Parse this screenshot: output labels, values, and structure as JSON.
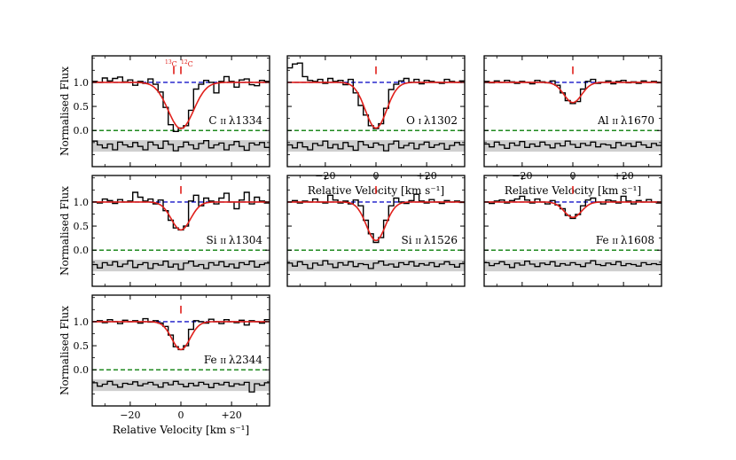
{
  "colors": {
    "data": "#000000",
    "model": "#e0201b",
    "continuum": "#1515c8",
    "zero": "#1f8a1f",
    "residual_band": "#cfcfcf",
    "marker": "#e0201b"
  },
  "labels": {
    "ylabel": "Normalised Flux",
    "xlabel": "Relative Velocity [km s⁻¹]"
  },
  "chart_data": {
    "type": "line",
    "xlim": [
      -35,
      35
    ],
    "ylim": [
      -0.75,
      1.55
    ],
    "yticks": [
      0.0,
      0.5,
      1.0
    ],
    "ytick_labels": [
      "0.0",
      "0.5",
      "1.0"
    ],
    "xticks": [
      -20,
      0,
      20
    ],
    "xtick_labels": [
      "−20",
      "0",
      "+20"
    ],
    "continuum_level": 1.0,
    "zero_level": 0.0,
    "residual_offset": -0.32,
    "residual_band_halfwidth": 0.12,
    "panels": [
      {
        "label": "C ii λ1334",
        "ion": "C",
        "state": "ii",
        "wave": "λ1334",
        "component_markers": [
          -2.8,
          0.0
        ],
        "marker_labels": [
          "13C",
          "12C"
        ],
        "model": {
          "center": 0.0,
          "depth": 0.96,
          "width": 5.0
        },
        "x": [
          -34,
          -32,
          -30,
          -28,
          -26,
          -24,
          -22,
          -20,
          -18,
          -16,
          -14,
          -12,
          -10,
          -8,
          -6,
          -4,
          -2,
          0,
          2,
          4,
          6,
          8,
          10,
          12,
          14,
          16,
          18,
          20,
          22,
          24,
          26,
          28,
          30,
          32,
          34
        ],
        "y": [
          1.02,
          1.0,
          1.09,
          1.03,
          1.08,
          1.11,
          1.01,
          1.05,
          0.94,
          1.02,
          0.98,
          1.07,
          0.96,
          0.8,
          0.48,
          0.12,
          -0.02,
          0.05,
          0.1,
          0.42,
          0.86,
          0.96,
          1.04,
          1.0,
          0.78,
          1.02,
          1.12,
          1.02,
          0.9,
          1.05,
          1.07,
          0.95,
          0.93,
          1.04,
          1.02
        ],
        "resid": [
          -0.22,
          -0.3,
          -0.36,
          -0.28,
          -0.4,
          -0.24,
          -0.3,
          -0.34,
          -0.25,
          -0.33,
          -0.4,
          -0.24,
          -0.3,
          -0.37,
          -0.22,
          -0.29,
          -0.42,
          -0.34,
          -0.24,
          -0.3,
          -0.38,
          -0.27,
          -0.21,
          -0.36,
          -0.3,
          -0.26,
          -0.4,
          -0.3,
          -0.23,
          -0.33,
          -0.41,
          -0.26,
          -0.3,
          -0.25,
          -0.35
        ]
      },
      {
        "label": "O i λ1302",
        "ion": "O",
        "state": "i",
        "wave": "λ1302",
        "component_markers": [
          0.0
        ],
        "marker_labels": [],
        "model": {
          "center": 0.0,
          "depth": 0.95,
          "width": 4.2
        },
        "x": [
          -34,
          -32,
          -30,
          -28,
          -26,
          -24,
          -22,
          -20,
          -18,
          -16,
          -14,
          -12,
          -10,
          -8,
          -6,
          -4,
          -2,
          0,
          2,
          4,
          6,
          8,
          10,
          12,
          14,
          16,
          18,
          20,
          22,
          24,
          26,
          28,
          30,
          32,
          34
        ],
        "y": [
          1.3,
          1.38,
          1.4,
          1.12,
          1.04,
          1.02,
          1.06,
          0.98,
          1.08,
          1.02,
          1.04,
          0.95,
          1.06,
          0.78,
          0.52,
          0.32,
          0.1,
          0.04,
          0.14,
          0.46,
          0.85,
          0.96,
          1.03,
          1.08,
          1.0,
          1.06,
          0.97,
          1.04,
          1.02,
          1.0,
          0.98,
          1.06,
          1.02,
          1.0,
          1.03
        ],
        "resid": [
          -0.3,
          -0.36,
          -0.25,
          -0.34,
          -0.4,
          -0.27,
          -0.31,
          -0.22,
          -0.36,
          -0.29,
          -0.38,
          -0.25,
          -0.33,
          -0.41,
          -0.23,
          -0.3,
          -0.35,
          -0.26,
          -0.3,
          -0.42,
          -0.28,
          -0.22,
          -0.36,
          -0.31,
          -0.26,
          -0.38,
          -0.29,
          -0.24,
          -0.35,
          -0.3,
          -0.27,
          -0.39,
          -0.31,
          -0.25,
          -0.3
        ]
      },
      {
        "label": "Al ii λ1670",
        "ion": "Al",
        "state": "ii",
        "wave": "λ1670",
        "component_markers": [
          0.0
        ],
        "marker_labels": [],
        "model": {
          "center": 0.0,
          "depth": 0.42,
          "width": 3.5
        },
        "x": [
          -34,
          -32,
          -30,
          -28,
          -26,
          -24,
          -22,
          -20,
          -18,
          -16,
          -14,
          -12,
          -10,
          -8,
          -6,
          -4,
          -2,
          0,
          2,
          4,
          6,
          8,
          10,
          12,
          14,
          16,
          18,
          20,
          22,
          24,
          26,
          28,
          30,
          32,
          34
        ],
        "y": [
          1.02,
          0.99,
          1.03,
          1.0,
          1.04,
          1.01,
          0.98,
          1.02,
          1.0,
          0.97,
          1.04,
          1.01,
          0.99,
          1.03,
          0.94,
          0.78,
          0.62,
          0.56,
          0.6,
          0.86,
          1.02,
          1.06,
          0.98,
          1.0,
          1.03,
          0.97,
          1.02,
          1.04,
          0.99,
          1.01,
          0.98,
          1.03,
          1.0,
          1.02,
          0.99
        ],
        "resid": [
          -0.28,
          -0.34,
          -0.24,
          -0.3,
          -0.37,
          -0.26,
          -0.31,
          -0.23,
          -0.35,
          -0.28,
          -0.33,
          -0.24,
          -0.3,
          -0.36,
          -0.27,
          -0.32,
          -0.22,
          -0.29,
          -0.35,
          -0.27,
          -0.31,
          -0.24,
          -0.34,
          -0.28,
          -0.3,
          -0.36,
          -0.25,
          -0.31,
          -0.27,
          -0.33,
          -0.24,
          -0.3,
          -0.35,
          -0.27,
          -0.31
        ]
      },
      {
        "label": "Si ii λ1304",
        "ion": "Si",
        "state": "ii",
        "wave": "λ1304",
        "component_markers": [
          0.0
        ],
        "marker_labels": [],
        "model": {
          "center": 0.0,
          "depth": 0.58,
          "width": 3.8
        },
        "x": [
          -34,
          -32,
          -30,
          -28,
          -26,
          -24,
          -22,
          -20,
          -18,
          -16,
          -14,
          -12,
          -10,
          -8,
          -6,
          -4,
          -2,
          0,
          2,
          4,
          6,
          8,
          10,
          12,
          14,
          16,
          18,
          20,
          22,
          24,
          26,
          28,
          30,
          32,
          34
        ],
        "y": [
          1.0,
          0.98,
          1.06,
          1.03,
          0.97,
          1.05,
          1.0,
          1.02,
          1.2,
          1.1,
          1.02,
          1.06,
          0.96,
          1.04,
          0.82,
          0.62,
          0.46,
          0.42,
          0.5,
          1.02,
          1.14,
          0.92,
          1.08,
          1.02,
          0.96,
          1.08,
          1.18,
          1.0,
          0.86,
          1.04,
          1.2,
          0.96,
          1.1,
          1.02,
          0.98
        ],
        "resid": [
          -0.3,
          -0.37,
          -0.26,
          -0.31,
          -0.24,
          -0.34,
          -0.29,
          -0.22,
          -0.36,
          -0.3,
          -0.26,
          -0.38,
          -0.28,
          -0.31,
          -0.23,
          -0.35,
          -0.29,
          -0.4,
          -0.27,
          -0.23,
          -0.33,
          -0.3,
          -0.38,
          -0.26,
          -0.31,
          -0.24,
          -0.34,
          -0.29,
          -0.37,
          -0.26,
          -0.3,
          -0.23,
          -0.35,
          -0.3,
          -0.27
        ]
      },
      {
        "label": "Si ii λ1526",
        "ion": "Si",
        "state": "ii",
        "wave": "λ1526",
        "component_markers": [
          0.0
        ],
        "marker_labels": [],
        "model": {
          "center": 0.0,
          "depth": 0.8,
          "width": 3.8
        },
        "x": [
          -34,
          -32,
          -30,
          -28,
          -26,
          -24,
          -22,
          -20,
          -18,
          -16,
          -14,
          -12,
          -10,
          -8,
          -6,
          -4,
          -2,
          0,
          2,
          4,
          6,
          8,
          10,
          12,
          14,
          16,
          18,
          20,
          22,
          24,
          26,
          28,
          30,
          32,
          34
        ],
        "y": [
          1.0,
          1.03,
          0.98,
          1.02,
          1.0,
          1.06,
          1.0,
          0.98,
          1.14,
          1.04,
          0.98,
          1.02,
          0.96,
          1.04,
          0.92,
          0.62,
          0.34,
          0.16,
          0.26,
          0.62,
          0.92,
          1.08,
          1.0,
          0.97,
          1.03,
          1.16,
          1.02,
          0.98,
          1.05,
          1.0,
          0.97,
          1.03,
          1.0,
          1.02,
          0.99
        ],
        "resid": [
          -0.27,
          -0.33,
          -0.24,
          -0.3,
          -0.38,
          -0.27,
          -0.31,
          -0.22,
          -0.29,
          -0.36,
          -0.26,
          -0.31,
          -0.24,
          -0.34,
          -0.28,
          -0.3,
          -0.38,
          -0.27,
          -0.23,
          -0.31,
          -0.29,
          -0.35,
          -0.26,
          -0.3,
          -0.24,
          -0.33,
          -0.28,
          -0.31,
          -0.26,
          -0.34,
          -0.29,
          -0.24,
          -0.3,
          -0.35,
          -0.28
        ]
      },
      {
        "label": "Fe ii λ1608",
        "ion": "Fe",
        "state": "ii",
        "wave": "λ1608",
        "component_markers": [
          0.0
        ],
        "marker_labels": [],
        "model": {
          "center": 0.0,
          "depth": 0.32,
          "width": 3.4
        },
        "x": [
          -34,
          -32,
          -30,
          -28,
          -26,
          -24,
          -22,
          -20,
          -18,
          -16,
          -14,
          -12,
          -10,
          -8,
          -6,
          -4,
          -2,
          0,
          2,
          4,
          6,
          8,
          10,
          12,
          14,
          16,
          18,
          20,
          22,
          24,
          26,
          28,
          30,
          32,
          34
        ],
        "y": [
          1.0,
          0.97,
          1.02,
          1.04,
          0.98,
          1.03,
          1.06,
          1.12,
          1.04,
          0.98,
          1.06,
          1.0,
          0.96,
          1.03,
          0.94,
          0.86,
          0.72,
          0.66,
          0.74,
          0.92,
          1.04,
          1.08,
          1.0,
          0.96,
          1.04,
          1.02,
          0.98,
          1.12,
          1.02,
          0.96,
          1.03,
          1.0,
          1.05,
          1.0,
          0.98
        ],
        "resid": [
          -0.26,
          -0.32,
          -0.28,
          -0.24,
          -0.3,
          -0.36,
          -0.27,
          -0.31,
          -0.23,
          -0.29,
          -0.34,
          -0.27,
          -0.3,
          -0.24,
          -0.33,
          -0.28,
          -0.31,
          -0.26,
          -0.3,
          -0.34,
          -0.27,
          -0.22,
          -0.3,
          -0.32,
          -0.27,
          -0.3,
          -0.24,
          -0.32,
          -0.28,
          -0.3,
          -0.33,
          -0.26,
          -0.3,
          -0.28,
          -0.3
        ]
      },
      {
        "label": "Fe ii λ2344",
        "ion": "Fe",
        "state": "ii",
        "wave": "λ2344",
        "component_markers": [
          0.0
        ],
        "marker_labels": [],
        "model": {
          "center": 0.0,
          "depth": 0.58,
          "width": 3.6
        },
        "x": [
          -34,
          -32,
          -30,
          -28,
          -26,
          -24,
          -22,
          -20,
          -18,
          -16,
          -14,
          -12,
          -10,
          -8,
          -6,
          -4,
          -2,
          0,
          2,
          4,
          6,
          8,
          10,
          12,
          14,
          16,
          18,
          20,
          22,
          24,
          26,
          28,
          30,
          32,
          34
        ],
        "y": [
          1.0,
          1.02,
          0.98,
          1.04,
          1.0,
          0.96,
          1.03,
          1.0,
          1.02,
          0.97,
          1.06,
          0.99,
          1.02,
          0.97,
          0.9,
          0.72,
          0.48,
          0.42,
          0.5,
          0.84,
          1.02,
          1.0,
          0.97,
          1.05,
          1.0,
          0.96,
          1.04,
          1.0,
          0.98,
          1.03,
          0.93,
          1.02,
          1.0,
          0.97,
          1.04
        ],
        "resid": [
          -0.27,
          -0.34,
          -0.3,
          -0.24,
          -0.31,
          -0.36,
          -0.28,
          -0.3,
          -0.25,
          -0.33,
          -0.29,
          -0.26,
          -0.31,
          -0.36,
          -0.27,
          -0.31,
          -0.24,
          -0.3,
          -0.35,
          -0.28,
          -0.33,
          -0.26,
          -0.3,
          -0.37,
          -0.28,
          -0.31,
          -0.26,
          -0.34,
          -0.29,
          -0.31,
          -0.26,
          -0.46,
          -0.29,
          -0.32,
          -0.27
        ]
      }
    ]
  }
}
